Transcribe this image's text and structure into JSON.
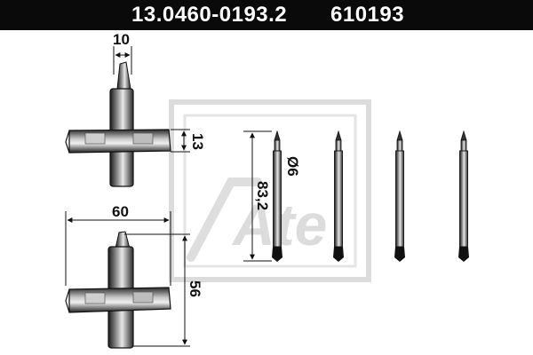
{
  "header": {
    "part_number": "13.0460-0193.2",
    "ref_number": "610193"
  },
  "dimensions": {
    "clip_width": "10",
    "clip_thickness": "13",
    "clip_length": "60",
    "clip_height": "56",
    "pin_length": "83,2",
    "pin_diameter": "Ø6"
  },
  "watermark": {
    "brand_text": "Ate"
  },
  "colors": {
    "header_bg": "#0a0a0a",
    "header_text": "#ffffff",
    "line": "#111111",
    "watermark": "#dcdcdc"
  }
}
